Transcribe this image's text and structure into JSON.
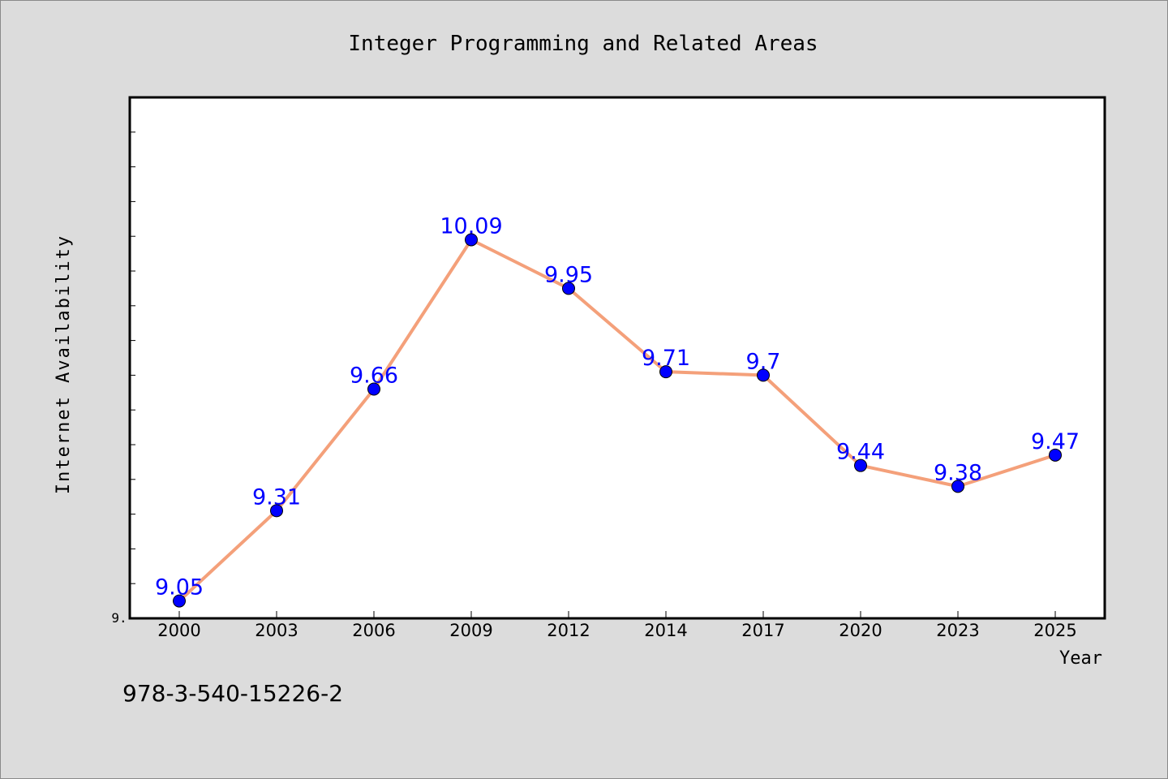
{
  "colors": {
    "background": "#dcdcdc",
    "plot_background": "#ffffff",
    "line": "#f4a07a",
    "marker": "#0000ff",
    "data_label": "#0000ff",
    "text": "#000000"
  },
  "footer": {
    "isbn": "978-3-540-15226-2"
  },
  "chart_data": {
    "type": "line",
    "title": "Integer Programming and Related Areas",
    "xlabel": "Year",
    "ylabel": "Internet Availability",
    "y_tick_label": "9.",
    "categories": [
      "2000",
      "2003",
      "2006",
      "2009",
      "2012",
      "2014",
      "2017",
      "2020",
      "2023",
      "2025"
    ],
    "series": [
      {
        "values": [
          9.05,
          9.31,
          9.66,
          10.09,
          9.95,
          9.71,
          9.7,
          9.44,
          9.38,
          9.47
        ],
        "labels": [
          "9.05",
          "9.31",
          "9.66",
          "10.09",
          "9.95",
          "9.71",
          "9.7",
          "9.44",
          "9.38",
          "9.47"
        ]
      }
    ],
    "ylim": [
      9.0,
      10.5
    ],
    "grid": false,
    "legend": "none"
  }
}
